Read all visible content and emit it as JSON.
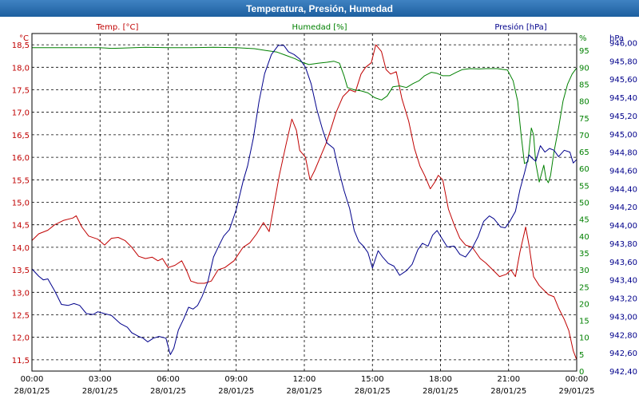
{
  "window": {
    "title": "Temperatura, Presión, Humedad"
  },
  "colors": {
    "temperature": "#c00000",
    "humidity": "#008000",
    "pressure": "#00008b",
    "grid": "#000000"
  },
  "chart_data": {
    "type": "line",
    "title": "Temperatura, Presión, Humedad",
    "grid": true,
    "x_axis": {
      "range_hours": [
        0,
        24
      ],
      "tick_hours": [
        0,
        3,
        6,
        9,
        12,
        15,
        18,
        21,
        24
      ],
      "tick_times": [
        "00:00",
        "03:00",
        "06:00",
        "09:00",
        "12:00",
        "15:00",
        "18:00",
        "21:00",
        "00:00"
      ],
      "tick_dates": [
        "28/01/25",
        "28/01/25",
        "28/01/25",
        "28/01/25",
        "28/01/25",
        "28/01/25",
        "28/01/25",
        "28/01/25",
        "29/01/25"
      ]
    },
    "axes": {
      "temperature": {
        "label": "Temp. [°C]",
        "unit": "°C",
        "side": "left",
        "range": [
          11.25,
          18.75
        ],
        "ticks": [
          11.5,
          12.0,
          12.5,
          13.0,
          13.5,
          14.0,
          14.5,
          15.0,
          15.5,
          16.0,
          16.5,
          17.0,
          17.5,
          18.0,
          18.5
        ],
        "tick_labels": [
          "11,5",
          "12,0",
          "12,5",
          "13,0",
          "13,5",
          "14,0",
          "14,5",
          "15,0",
          "15,5",
          "16,0",
          "16,5",
          "17,0",
          "17,5",
          "18,0",
          "18,5"
        ]
      },
      "humidity": {
        "label": "Humedad [%]",
        "unit": "%",
        "side": "right",
        "range": [
          0,
          100
        ],
        "ticks": [
          0,
          5,
          10,
          15,
          20,
          25,
          30,
          35,
          40,
          45,
          50,
          55,
          60,
          65,
          70,
          75,
          80,
          85,
          90,
          95
        ],
        "tick_labels": [
          "0",
          "5",
          "10",
          "15",
          "20",
          "25",
          "30",
          "35",
          "40",
          "45",
          "50",
          "55",
          "60",
          "65",
          "70",
          "75",
          "80",
          "85",
          "90",
          "95"
        ]
      },
      "pressure": {
        "label": "Presión [hPa]",
        "unit": "hPa",
        "side": "right",
        "range": [
          942.4,
          946.1
        ],
        "ticks": [
          942.4,
          942.6,
          942.8,
          943.0,
          943.2,
          943.4,
          943.6,
          943.8,
          944.0,
          944.2,
          944.4,
          944.6,
          944.8,
          945.0,
          945.2,
          945.4,
          945.6,
          945.8,
          946.0
        ],
        "tick_labels": [
          "942,40",
          "942,60",
          "942,80",
          "943,00",
          "943,20",
          "943,40",
          "943,60",
          "943,80",
          "944,00",
          "944,20",
          "944,40",
          "944,60",
          "944,80",
          "945,00",
          "945,20",
          "945,40",
          "945,60",
          "945,80",
          "946,00"
        ]
      }
    },
    "series": [
      {
        "name": "Temp. [°C]",
        "axis": "temperature",
        "color": "#c00000",
        "points": [
          [
            0,
            14.15
          ],
          [
            0.3,
            14.3
          ],
          [
            0.7,
            14.38
          ],
          [
            1.0,
            14.5
          ],
          [
            1.4,
            14.6
          ],
          [
            1.8,
            14.65
          ],
          [
            1.95,
            14.7
          ],
          [
            2.2,
            14.45
          ],
          [
            2.5,
            14.25
          ],
          [
            2.9,
            14.18
          ],
          [
            3.2,
            14.05
          ],
          [
            3.5,
            14.2
          ],
          [
            3.8,
            14.22
          ],
          [
            4.1,
            14.15
          ],
          [
            4.4,
            14.0
          ],
          [
            4.7,
            13.8
          ],
          [
            5.0,
            13.75
          ],
          [
            5.3,
            13.78
          ],
          [
            5.55,
            13.7
          ],
          [
            5.75,
            13.75
          ],
          [
            6.0,
            13.55
          ],
          [
            6.3,
            13.6
          ],
          [
            6.6,
            13.7
          ],
          [
            6.8,
            13.5
          ],
          [
            7.0,
            13.25
          ],
          [
            7.3,
            13.2
          ],
          [
            7.6,
            13.2
          ],
          [
            7.9,
            13.25
          ],
          [
            8.2,
            13.5
          ],
          [
            8.5,
            13.55
          ],
          [
            8.9,
            13.7
          ],
          [
            9.3,
            14.0
          ],
          [
            9.6,
            14.1
          ],
          [
            9.9,
            14.3
          ],
          [
            10.2,
            14.55
          ],
          [
            10.45,
            14.35
          ],
          [
            10.65,
            14.9
          ],
          [
            10.9,
            15.6
          ],
          [
            11.2,
            16.3
          ],
          [
            11.45,
            16.85
          ],
          [
            11.65,
            16.6
          ],
          [
            11.8,
            16.15
          ],
          [
            12.05,
            16.0
          ],
          [
            12.25,
            15.5
          ],
          [
            12.45,
            15.7
          ],
          [
            12.7,
            16.0
          ],
          [
            12.95,
            16.3
          ],
          [
            13.15,
            16.6
          ],
          [
            13.4,
            17.0
          ],
          [
            13.7,
            17.35
          ],
          [
            14.0,
            17.5
          ],
          [
            14.25,
            17.45
          ],
          [
            14.5,
            17.85
          ],
          [
            14.7,
            18.0
          ],
          [
            14.95,
            18.1
          ],
          [
            15.15,
            18.5
          ],
          [
            15.4,
            18.35
          ],
          [
            15.6,
            17.95
          ],
          [
            15.8,
            17.85
          ],
          [
            16.05,
            17.9
          ],
          [
            16.3,
            17.3
          ],
          [
            16.6,
            16.8
          ],
          [
            16.85,
            16.2
          ],
          [
            17.1,
            15.8
          ],
          [
            17.3,
            15.6
          ],
          [
            17.55,
            15.3
          ],
          [
            17.75,
            15.45
          ],
          [
            17.9,
            15.6
          ],
          [
            18.1,
            15.5
          ],
          [
            18.35,
            14.85
          ],
          [
            18.6,
            14.5
          ],
          [
            18.85,
            14.2
          ],
          [
            19.1,
            14.05
          ],
          [
            19.4,
            14.0
          ],
          [
            19.75,
            13.75
          ],
          [
            20.0,
            13.65
          ],
          [
            20.3,
            13.5
          ],
          [
            20.6,
            13.35
          ],
          [
            20.9,
            13.4
          ],
          [
            21.1,
            13.5
          ],
          [
            21.3,
            13.35
          ],
          [
            21.5,
            13.9
          ],
          [
            21.75,
            14.45
          ],
          [
            21.9,
            14.05
          ],
          [
            22.1,
            13.35
          ],
          [
            22.35,
            13.15
          ],
          [
            22.55,
            13.05
          ],
          [
            22.75,
            12.95
          ],
          [
            23.0,
            12.9
          ],
          [
            23.2,
            12.65
          ],
          [
            23.45,
            12.4
          ],
          [
            23.65,
            12.15
          ],
          [
            23.85,
            11.7
          ],
          [
            24.0,
            11.5
          ]
        ]
      },
      {
        "name": "Humedad [%]",
        "axis": "humidity",
        "color": "#008000",
        "points": [
          [
            0,
            95.8
          ],
          [
            3.0,
            95.8
          ],
          [
            3.5,
            95.6
          ],
          [
            4.0,
            95.7
          ],
          [
            5.0,
            95.9
          ],
          [
            6.0,
            95.8
          ],
          [
            7.0,
            95.8
          ],
          [
            8.0,
            95.9
          ],
          [
            9.0,
            95.8
          ],
          [
            9.8,
            95.5
          ],
          [
            10.3,
            95.0
          ],
          [
            10.8,
            94.5
          ],
          [
            11.2,
            93.5
          ],
          [
            11.6,
            92.5
          ],
          [
            11.9,
            91.5
          ],
          [
            12.2,
            90.8
          ],
          [
            12.6,
            91.2
          ],
          [
            13.0,
            91.5
          ],
          [
            13.3,
            91.8
          ],
          [
            13.55,
            91.2
          ],
          [
            13.75,
            87.5
          ],
          [
            13.9,
            84.0
          ],
          [
            14.2,
            83.3
          ],
          [
            14.5,
            83.0
          ],
          [
            14.8,
            82.4
          ],
          [
            15.1,
            81.0
          ],
          [
            15.4,
            80.3
          ],
          [
            15.65,
            81.5
          ],
          [
            15.9,
            84.2
          ],
          [
            16.2,
            84.5
          ],
          [
            16.5,
            84.0
          ],
          [
            16.8,
            85.2
          ],
          [
            17.05,
            86.0
          ],
          [
            17.3,
            87.5
          ],
          [
            17.6,
            88.5
          ],
          [
            17.85,
            88.2
          ],
          [
            18.1,
            87.5
          ],
          [
            18.4,
            87.5
          ],
          [
            18.7,
            88.5
          ],
          [
            18.95,
            89.3
          ],
          [
            19.3,
            89.6
          ],
          [
            19.7,
            89.5
          ],
          [
            20.0,
            89.6
          ],
          [
            20.5,
            89.6
          ],
          [
            20.95,
            89.2
          ],
          [
            21.2,
            86.0
          ],
          [
            21.4,
            80.0
          ],
          [
            21.55,
            70.0
          ],
          [
            21.7,
            61.5
          ],
          [
            21.85,
            62.0
          ],
          [
            22.0,
            72.0
          ],
          [
            22.1,
            70.0
          ],
          [
            22.2,
            61.5
          ],
          [
            22.35,
            56.0
          ],
          [
            22.45,
            58.5
          ],
          [
            22.55,
            61.0
          ],
          [
            22.65,
            57.0
          ],
          [
            22.75,
            55.8
          ],
          [
            22.85,
            58.0
          ],
          [
            23.0,
            65.0
          ],
          [
            23.2,
            72.0
          ],
          [
            23.4,
            80.0
          ],
          [
            23.6,
            85.0
          ],
          [
            23.8,
            88.0
          ],
          [
            24.0,
            89.8
          ]
        ]
      },
      {
        "name": "Presión [hPa]",
        "axis": "pressure",
        "color": "#00008b",
        "points": [
          [
            0,
            943.52
          ],
          [
            0.3,
            943.44
          ],
          [
            0.5,
            943.4
          ],
          [
            0.7,
            943.41
          ],
          [
            1.0,
            943.28
          ],
          [
            1.3,
            943.13
          ],
          [
            1.6,
            943.12
          ],
          [
            1.85,
            943.14
          ],
          [
            2.1,
            943.12
          ],
          [
            2.4,
            943.03
          ],
          [
            2.7,
            943.02
          ],
          [
            2.9,
            943.05
          ],
          [
            3.2,
            943.03
          ],
          [
            3.5,
            943.01
          ],
          [
            3.9,
            942.92
          ],
          [
            4.2,
            942.88
          ],
          [
            4.4,
            942.82
          ],
          [
            4.7,
            942.78
          ],
          [
            4.9,
            942.76
          ],
          [
            5.1,
            942.72
          ],
          [
            5.35,
            942.76
          ],
          [
            5.6,
            942.78
          ],
          [
            5.9,
            942.76
          ],
          [
            6.1,
            942.58
          ],
          [
            6.25,
            942.65
          ],
          [
            6.45,
            942.85
          ],
          [
            6.7,
            942.98
          ],
          [
            6.9,
            943.1
          ],
          [
            7.1,
            943.08
          ],
          [
            7.3,
            943.12
          ],
          [
            7.5,
            943.22
          ],
          [
            7.75,
            943.38
          ],
          [
            8.0,
            943.65
          ],
          [
            8.25,
            943.78
          ],
          [
            8.45,
            943.88
          ],
          [
            8.7,
            943.95
          ],
          [
            9.0,
            944.17
          ],
          [
            9.3,
            944.48
          ],
          [
            9.5,
            944.65
          ],
          [
            9.75,
            944.95
          ],
          [
            10.0,
            945.35
          ],
          [
            10.25,
            945.66
          ],
          [
            10.55,
            945.87
          ],
          [
            10.85,
            945.97
          ],
          [
            11.1,
            945.97
          ],
          [
            11.3,
            945.9
          ],
          [
            11.55,
            945.87
          ],
          [
            11.8,
            945.82
          ],
          [
            12.05,
            945.73
          ],
          [
            12.3,
            945.55
          ],
          [
            12.55,
            945.27
          ],
          [
            12.8,
            945.05
          ],
          [
            13.0,
            944.9
          ],
          [
            13.3,
            944.84
          ],
          [
            13.5,
            944.62
          ],
          [
            13.75,
            944.38
          ],
          [
            14.0,
            944.18
          ],
          [
            14.2,
            943.94
          ],
          [
            14.4,
            943.82
          ],
          [
            14.6,
            943.77
          ],
          [
            14.8,
            943.7
          ],
          [
            15.0,
            943.53
          ],
          [
            15.25,
            943.72
          ],
          [
            15.45,
            943.65
          ],
          [
            15.7,
            943.58
          ],
          [
            15.95,
            943.55
          ],
          [
            16.2,
            943.45
          ],
          [
            16.5,
            943.5
          ],
          [
            16.75,
            943.57
          ],
          [
            17.0,
            943.73
          ],
          [
            17.2,
            943.8
          ],
          [
            17.45,
            943.77
          ],
          [
            17.65,
            943.89
          ],
          [
            17.85,
            943.94
          ],
          [
            18.05,
            943.86
          ],
          [
            18.3,
            943.76
          ],
          [
            18.6,
            943.77
          ],
          [
            18.85,
            943.68
          ],
          [
            19.1,
            943.65
          ],
          [
            19.4,
            943.75
          ],
          [
            19.65,
            943.87
          ],
          [
            19.9,
            944.04
          ],
          [
            20.15,
            944.1
          ],
          [
            20.35,
            944.07
          ],
          [
            20.65,
            943.98
          ],
          [
            20.85,
            943.97
          ],
          [
            21.05,
            944.04
          ],
          [
            21.3,
            944.15
          ],
          [
            21.5,
            944.39
          ],
          [
            21.7,
            944.57
          ],
          [
            21.9,
            944.77
          ],
          [
            22.05,
            944.73
          ],
          [
            22.2,
            944.7
          ],
          [
            22.4,
            944.87
          ],
          [
            22.6,
            944.8
          ],
          [
            22.8,
            944.84
          ],
          [
            23.0,
            944.82
          ],
          [
            23.2,
            944.75
          ],
          [
            23.45,
            944.82
          ],
          [
            23.7,
            944.8
          ],
          [
            23.85,
            944.68
          ],
          [
            24.0,
            944.72
          ]
        ]
      }
    ]
  }
}
